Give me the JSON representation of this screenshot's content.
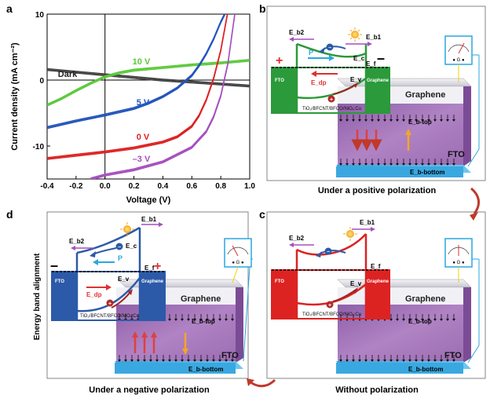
{
  "panels": {
    "a": {
      "label": "a",
      "chart_data": {
        "type": "line",
        "xlabel": "Voltage (V)",
        "ylabel": "Current density (mA cm⁻²)",
        "xlim": [
          -0.4,
          1.0
        ],
        "ylim": [
          -15,
          10
        ],
        "xticks": [
          "-0.4",
          "-0.2",
          "0.0",
          "0.2",
          "0.4",
          "0.6",
          "0.8",
          "1.0"
        ],
        "yticks": [
          "-10",
          "0",
          "10"
        ],
        "series": [
          {
            "name": "Dark",
            "color": "#444444",
            "x": [
              -0.4,
              -0.2,
              0.0,
              0.2,
              0.4,
              0.6,
              0.8,
              1.0
            ],
            "y": [
              1.6,
              1.2,
              0.8,
              0.4,
              0.0,
              -0.3,
              -0.6,
              -0.9
            ]
          },
          {
            "name": "10 V",
            "color": "#5cc93c",
            "x": [
              -0.4,
              -0.3,
              -0.2,
              -0.1,
              0.0,
              0.1,
              0.2,
              0.4,
              0.6,
              0.8,
              1.0
            ],
            "y": [
              -3.8,
              -2.8,
              -1.6,
              -0.5,
              0.5,
              1.1,
              1.5,
              1.9,
              2.3,
              2.6,
              3.0
            ]
          },
          {
            "name": "5 V",
            "color": "#2255bb",
            "x": [
              -0.4,
              -0.2,
              0.0,
              0.2,
              0.3,
              0.4,
              0.5,
              0.6,
              0.65,
              0.7,
              0.75,
              0.8,
              0.85
            ],
            "y": [
              -7.2,
              -6.2,
              -5.3,
              -4.3,
              -3.5,
              -2.5,
              -1.2,
              0.7,
              2.2,
              4.0,
              6.2,
              8.8,
              11
            ]
          },
          {
            "name": "0 V",
            "color": "#dd2222",
            "x": [
              -0.4,
              -0.2,
              0.0,
              0.2,
              0.4,
              0.5,
              0.6,
              0.65,
              0.7,
              0.75,
              0.8,
              0.85
            ],
            "y": [
              -11.9,
              -11.4,
              -10.9,
              -10.3,
              -9.4,
              -8.6,
              -7.0,
              -5.4,
              -3.0,
              0.2,
              4.5,
              10.5
            ]
          },
          {
            "name": "–3 V",
            "color": "#a64fbf",
            "x": [
              -0.1,
              0.0,
              0.2,
              0.4,
              0.6,
              0.7,
              0.75,
              0.8,
              0.85,
              0.9
            ],
            "y": [
              -15,
              -14.4,
              -13.6,
              -12.4,
              -10.2,
              -7.8,
              -5.6,
              -2.4,
              2.6,
              10.5
            ]
          }
        ],
        "curve_labels": [
          {
            "text": "Dark",
            "color": "#222222"
          },
          {
            "text": "10 V",
            "color": "#5cc93c"
          },
          {
            "text": "5 V",
            "color": "#2255bb"
          },
          {
            "text": "0 V",
            "color": "#dd2222"
          },
          {
            "text": "–3 V",
            "color": "#a64fbf"
          }
        ]
      }
    },
    "b": {
      "label": "b",
      "caption": "Under a positive polarization",
      "eb2": "E_b2",
      "eb1": "E_b1",
      "ec": "E_c",
      "ef": "E_f",
      "ev": "E_v",
      "edp": "E_dp",
      "p": "P",
      "fto": "FTO",
      "graphene": "Graphene",
      "material": "TiO₂/BFCNT/BFCO/NiOₓ:Cu",
      "ebtop": "E_b-top",
      "ebbottom": "E_b-bottom",
      "left_sign": "+",
      "right_sign": "–",
      "accent": "#2b9a3a"
    },
    "c": {
      "label": "c",
      "caption": "Without polarization",
      "eb2": "E_b2",
      "eb1": "E_b1",
      "ef": "E_f",
      "ev": "E_v",
      "fto": "FTO",
      "graphene": "Graphene",
      "material": "TiO₂/BFCNT/BFCO/NiOₓ:Cu",
      "ebtop": "E_b-top",
      "ebbottom": "E_b-bottom",
      "accent": "#dd2222"
    },
    "d": {
      "label": "d",
      "caption": "Under a negative polarization",
      "side_label": "Energy band alignment",
      "eb2": "E_b2",
      "eb1": "E_b1",
      "ec": "E_c",
      "ef": "E_f",
      "ev": "E_v",
      "edp": "E_dp",
      "p": "P",
      "fto": "FTO",
      "graphene": "Graphene",
      "material": "TiO₂/BFCNT/BFCO/NiOₓ:Cu",
      "ebtop": "E_b-top",
      "ebbottom": "E_b-bottom",
      "left_sign": "–",
      "right_sign": "+",
      "accent": "#2c5aa8"
    }
  }
}
